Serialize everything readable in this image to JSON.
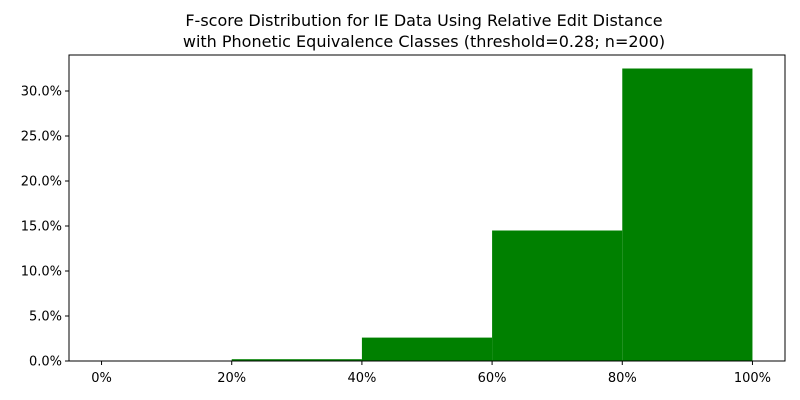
{
  "chart_data": {
    "type": "bar",
    "title": "F-score Distribution for IE Data Using Relative Edit Distance",
    "subtitle": "with Phonetic Equivalence Classes (threshold=0.28; n=200)",
    "xlabel": "",
    "ylabel": "",
    "bin_edges": [
      0,
      20,
      40,
      60,
      80,
      100
    ],
    "values": [
      0.0,
      0.2,
      2.6,
      14.5,
      32.5
    ],
    "xlim": [
      -5,
      105
    ],
    "ylim": [
      0,
      34
    ],
    "xticks": [
      0,
      20,
      40,
      60,
      80,
      100
    ],
    "xtick_labels": [
      "0%",
      "20%",
      "40%",
      "60%",
      "80%",
      "100%"
    ],
    "yticks": [
      0,
      5,
      10,
      15,
      20,
      25,
      30
    ],
    "ytick_labels": [
      "0.0%",
      "5.0%",
      "10.0%",
      "15.0%",
      "20.0%",
      "25.0%",
      "30.0%"
    ],
    "bar_color": "#008000",
    "grid": false,
    "legend": "none"
  }
}
